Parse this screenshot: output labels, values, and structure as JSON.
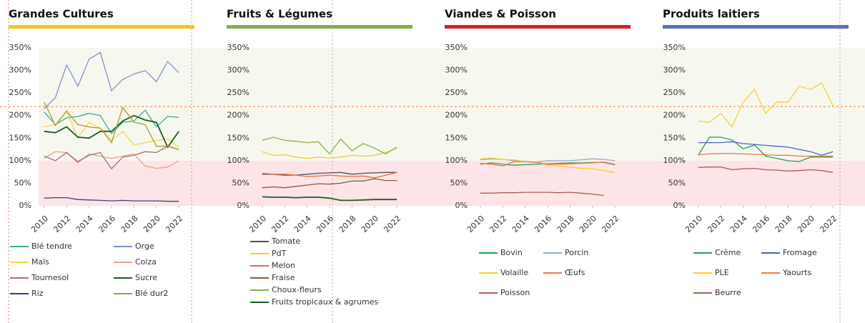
{
  "reference_line": {
    "value": 220,
    "color": "#f08030"
  },
  "chart_data": [
    {
      "type": "line",
      "title": "Grandes Cultures",
      "title_color": "#f5c518",
      "legend_columns": 2,
      "x": [
        2010,
        2011,
        2012,
        2013,
        2014,
        2015,
        2016,
        2017,
        2018,
        2019,
        2020,
        2021,
        2022
      ],
      "xlim": [
        2009.5,
        2022.5
      ],
      "xticks": [
        2010,
        2012,
        2014,
        2016,
        2018,
        2020,
        2022
      ],
      "ylim": [
        0,
        350
      ],
      "yticks": [
        {
          "value": 0,
          "label": "0%"
        },
        {
          "value": 50,
          "label": "50%"
        },
        {
          "value": 100,
          "label": "100%"
        },
        {
          "value": 150,
          "label": "150%"
        },
        {
          "value": 200,
          "label": "200%"
        },
        {
          "value": 250,
          "label": "250%"
        },
        {
          "value": 300,
          "label": "300%"
        },
        {
          "value": 350,
          "label": "350%"
        }
      ],
      "bands": [
        {
          "from": 0,
          "to": 100,
          "color": "#fde4e6"
        },
        {
          "from": 100,
          "to": 350,
          "color": "#f6f7ef"
        }
      ],
      "series": [
        {
          "name": "Blé tendre",
          "color": "#3aae8a",
          "values": [
            208,
            180,
            195,
            198,
            205,
            200,
            160,
            185,
            188,
            212,
            175,
            198,
            196
          ]
        },
        {
          "name": "Orge",
          "color": "#8090d0",
          "values": [
            215,
            240,
            312,
            265,
            325,
            340,
            255,
            280,
            292,
            300,
            275,
            320,
            295
          ]
        },
        {
          "name": "Maïs",
          "color": "#f7d54a",
          "values": [
            175,
            180,
            210,
            150,
            185,
            172,
            145,
            165,
            135,
            140,
            145,
            148,
            130
          ]
        },
        {
          "name": "Colza",
          "color": "#f2a080",
          "values": [
            105,
            120,
            118,
            95,
            115,
            110,
            105,
            110,
            115,
            88,
            83,
            86,
            100
          ]
        },
        {
          "name": "Tournesol",
          "color": "#a07080",
          "values": [
            110,
            100,
            118,
            98,
            112,
            118,
            82,
            108,
            112,
            120,
            118,
            132,
            125
          ]
        },
        {
          "name": "Sucre",
          "color": "#1a5e2a",
          "values": [
            165,
            162,
            175,
            152,
            150,
            165,
            165,
            188,
            200,
            190,
            185,
            130,
            165
          ]
        },
        {
          "name": "Riz",
          "color": "#3a3f80",
          "values": [
            17,
            18,
            18,
            14,
            13,
            12,
            11,
            12,
            11,
            11,
            11,
            10,
            10
          ]
        },
        {
          "name": "Blé dur2",
          "color": "#b09a30",
          "values": [
            230,
            178,
            210,
            180,
            175,
            172,
            140,
            218,
            185,
            180,
            132,
            132,
            125
          ]
        }
      ]
    },
    {
      "type": "line",
      "title": "Fruits & Légumes",
      "title_color": "#8aac4a",
      "legend_columns": 1,
      "x": [
        2010,
        2011,
        2012,
        2013,
        2014,
        2015,
        2016,
        2017,
        2018,
        2019,
        2020,
        2021,
        2022
      ],
      "xlim": [
        2009.5,
        2022.5
      ],
      "xticks": [
        2010,
        2012,
        2014,
        2016,
        2018,
        2020,
        2022
      ],
      "ylim": [
        0,
        350
      ],
      "yticks": [
        {
          "value": 0,
          "label": "0%"
        },
        {
          "value": 50,
          "label": "50%"
        },
        {
          "value": 100,
          "label": "100%"
        },
        {
          "value": 150,
          "label": "150%"
        },
        {
          "value": 200,
          "label": "200%"
        },
        {
          "value": 250,
          "label": "250%"
        },
        {
          "value": 300,
          "label": "300%"
        },
        {
          "value": 350,
          "label": "350%"
        }
      ],
      "series": [
        {
          "name": "Tomate",
          "color": "#505050",
          "values": [
            70,
            70,
            68,
            68,
            70,
            72,
            73,
            74,
            70,
            72,
            73,
            74,
            74
          ]
        },
        {
          "name": "PdT",
          "color": "#f7c830",
          "values": [
            120,
            112,
            113,
            108,
            105,
            108,
            106,
            108,
            112,
            110,
            112,
            118,
            128
          ]
        },
        {
          "name": "Melon",
          "color": "#e86b4a",
          "values": [
            72,
            70,
            70,
            68,
            65,
            66,
            68,
            66,
            65,
            66,
            62,
            68,
            74
          ]
        },
        {
          "name": "Fraise",
          "color": "#8a5a3a",
          "values": [
            40,
            42,
            40,
            43,
            46,
            49,
            48,
            50,
            55,
            55,
            60,
            56,
            56
          ]
        },
        {
          "name": "Choux-fleurs",
          "color": "#8db04a",
          "values": [
            145,
            152,
            145,
            143,
            140,
            142,
            115,
            148,
            122,
            138,
            128,
            115,
            130
          ]
        },
        {
          "name": "Fruits tropicaux & agrumes",
          "color": "#1a5e2a",
          "values": [
            20,
            19,
            19,
            18,
            19,
            19,
            17,
            12,
            12,
            13,
            14,
            14,
            14
          ]
        }
      ]
    },
    {
      "type": "line",
      "title": "Viandes & Poisson",
      "title_color": "#d91c25",
      "legend_columns": 2,
      "x": [
        2010,
        2011,
        2012,
        2013,
        2014,
        2015,
        2016,
        2017,
        2018,
        2019,
        2020,
        2021,
        2022
      ],
      "xlim": [
        2009.5,
        2022.5
      ],
      "xticks": [
        2010,
        2012,
        2014,
        2016,
        2018,
        2020,
        2022
      ],
      "ylim": [
        0,
        350
      ],
      "yticks": [
        {
          "value": 0,
          "label": "0%"
        },
        {
          "value": 50,
          "label": "50%"
        },
        {
          "value": 100,
          "label": "100%"
        },
        {
          "value": 150,
          "label": "150%"
        },
        {
          "value": 200,
          "label": "200%"
        },
        {
          "value": 250,
          "label": "250%"
        },
        {
          "value": 300,
          "label": "300%"
        },
        {
          "value": 350,
          "label": "350%"
        }
      ],
      "series": [
        {
          "name": "Bovin",
          "color": "#1f9e5a",
          "values": [
            92,
            95,
            92,
            90,
            91,
            92,
            93,
            94,
            95,
            95,
            96,
            96,
            91
          ]
        },
        {
          "name": "Porcin",
          "color": "#98a8c8",
          "values": [
            102,
            104,
            103,
            100,
            98,
            97,
            100,
            100,
            100,
            102,
            104,
            103,
            100
          ]
        },
        {
          "name": "Volaille",
          "color": "#f7d030",
          "values": [
            104,
            106,
            103,
            102,
            98,
            96,
            90,
            88,
            86,
            83,
            82,
            78,
            74
          ]
        },
        {
          "name": "Œufs",
          "color": "#f07a4a",
          "values": [
            94,
            92,
            88,
            98,
            98,
            96,
            92,
            92,
            93,
            94,
            95,
            97,
            92
          ]
        },
        {
          "name": "Poisson",
          "color": "#a86050",
          "values": [
            28,
            28,
            29,
            29,
            30,
            30,
            30,
            29,
            30,
            28,
            26,
            23,
            null
          ]
        }
      ]
    },
    {
      "type": "line",
      "title": "Produits laitiers",
      "title_color": "#5a6fbf",
      "legend_columns": 2,
      "x": [
        2010,
        2011,
        2012,
        2013,
        2014,
        2015,
        2016,
        2017,
        2018,
        2019,
        2020,
        2021,
        2022
      ],
      "xlim": [
        2009.5,
        2022.5
      ],
      "xticks": [
        2010,
        2012,
        2014,
        2016,
        2018,
        2020,
        2022
      ],
      "ylim": [
        0,
        350
      ],
      "yticks": [
        {
          "value": 0,
          "label": "0%"
        },
        {
          "value": 50,
          "label": "50%"
        },
        {
          "value": 100,
          "label": "100%"
        },
        {
          "value": 150,
          "label": "150%"
        },
        {
          "value": 200,
          "label": "200%"
        },
        {
          "value": 250,
          "label": "250%"
        },
        {
          "value": 300,
          "label": "300%"
        },
        {
          "value": 350,
          "label": "350%"
        }
      ],
      "series": [
        {
          "name": "Crème",
          "color": "#1f9e5a",
          "values": [
            112,
            152,
            152,
            146,
            126,
            135,
            110,
            105,
            100,
            98,
            108,
            108,
            108
          ]
        },
        {
          "name": "Fromage",
          "color": "#4a64c0",
          "values": [
            140,
            140,
            140,
            142,
            138,
            136,
            134,
            132,
            130,
            125,
            120,
            112,
            120
          ]
        },
        {
          "name": "PLE",
          "color": "#f7d030",
          "values": [
            188,
            185,
            205,
            175,
            230,
            258,
            205,
            230,
            230,
            265,
            258,
            272,
            222
          ]
        },
        {
          "name": "Yaourts",
          "color": "#f07a4a",
          "values": [
            113,
            115,
            116,
            116,
            115,
            114,
            113,
            112,
            112,
            110,
            110,
            110,
            110
          ]
        },
        {
          "name": "Beurre",
          "color": "#a86050",
          "values": [
            85,
            86,
            86,
            80,
            82,
            83,
            80,
            79,
            77,
            78,
            80,
            78,
            74
          ]
        }
      ]
    }
  ]
}
